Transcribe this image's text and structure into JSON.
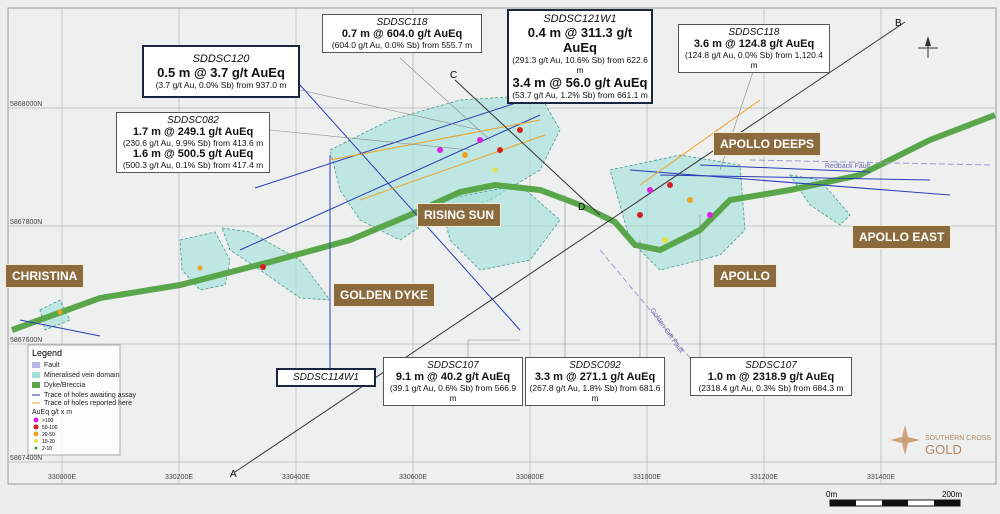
{
  "map": {
    "eastings": [
      "330000E",
      "330200E",
      "330400E",
      "330600E",
      "330800E",
      "331000E",
      "331200E",
      "331400E"
    ],
    "northings": [
      "5868000N",
      "5867800N",
      "5867600N",
      "5867400N"
    ],
    "place_labels": [
      "CHRISTINA",
      "RISING SUN",
      "GOLDEN DYKE",
      "APOLLO DEEPS",
      "APOLLO EAST",
      "APOLLO"
    ],
    "section_labels": [
      "A",
      "B",
      "C",
      "D"
    ],
    "fault_labels": [
      "Redback Fault",
      "Golden Gift Fault"
    ]
  },
  "callouts": [
    {
      "hole": "SDDSC118",
      "intercepts": [
        {
          "main": "0.7 m @ 604.0 g/t AuEq",
          "detail": "(604.0 g/t Au, 0.0% Sb) from 555.7 m"
        }
      ]
    },
    {
      "hole": "SDDSC121W1",
      "intercepts": [
        {
          "main": "0.4 m @ 311.3 g/t AuEq",
          "detail": "(291.3 g/t Au, 10.6% Sb) from 622.6 m"
        },
        {
          "main": "3.4 m @ 56.0 g/t AuEq",
          "detail": "(53.7 g/t Au, 1.2% Sb) from 661.1 m"
        }
      ]
    },
    {
      "hole": "SDDSC118",
      "intercepts": [
        {
          "main": "3.6 m @ 124.8 g/t AuEq",
          "detail": "(124.8 g/t Au, 0.0% Sb) from 1,120.4 m"
        }
      ]
    },
    {
      "hole": "SDDSC120",
      "intercepts": [
        {
          "main": "0.5 m @ 3.7 g/t AuEq",
          "detail": "(3.7 g/t Au, 0.0% Sb) from 937.0 m"
        }
      ]
    },
    {
      "hole": "SDDSC082",
      "intercepts": [
        {
          "main": "1.7 m @ 249.1 g/t AuEq",
          "detail": "(230.6 g/t Au, 9.9% Sb) from 413.6 m"
        },
        {
          "main": "1.6 m @ 500.5 g/t AuEq",
          "detail": "(500.3 g/t Au, 0.1% Sb) from 417.4 m"
        }
      ]
    },
    {
      "hole": "SDDSC114W1",
      "intercepts": []
    },
    {
      "hole": "SDDSC107",
      "intercepts": [
        {
          "main": "9.1 m @ 40.2 g/t AuEq",
          "detail": "(39.1 g/t Au, 0.6% Sb) from 566.9 m"
        }
      ]
    },
    {
      "hole": "SDDSC092",
      "intercepts": [
        {
          "main": "3.3 m @ 271.1 g/t AuEq",
          "detail": "(267.8 g/t Au, 1.8% Sb) from 681.6 m"
        }
      ]
    },
    {
      "hole": "SDDSC107",
      "intercepts": [
        {
          "main": "1.0 m @ 2318.9 g/t AuEq",
          "detail": "(2318.4 g/t Au, 0.3% Sb) from 684.3 m"
        }
      ]
    }
  ],
  "legend": {
    "title": "Legend",
    "items": [
      "Fault",
      "Mineralised vein domain",
      "Dyke/Breccia",
      "Trace of holes awaiting assay",
      "Trace of holes reported here"
    ],
    "grade_title": "AuEq g/t x m",
    "grades": [
      ">100",
      "50-100",
      "20-50",
      "10-20",
      "2-10"
    ]
  },
  "scale_bar": {
    "start": "0m",
    "end": "200m"
  },
  "logo": {
    "line1": "SOUTHERN CROSS",
    "line2": "GOLD"
  }
}
